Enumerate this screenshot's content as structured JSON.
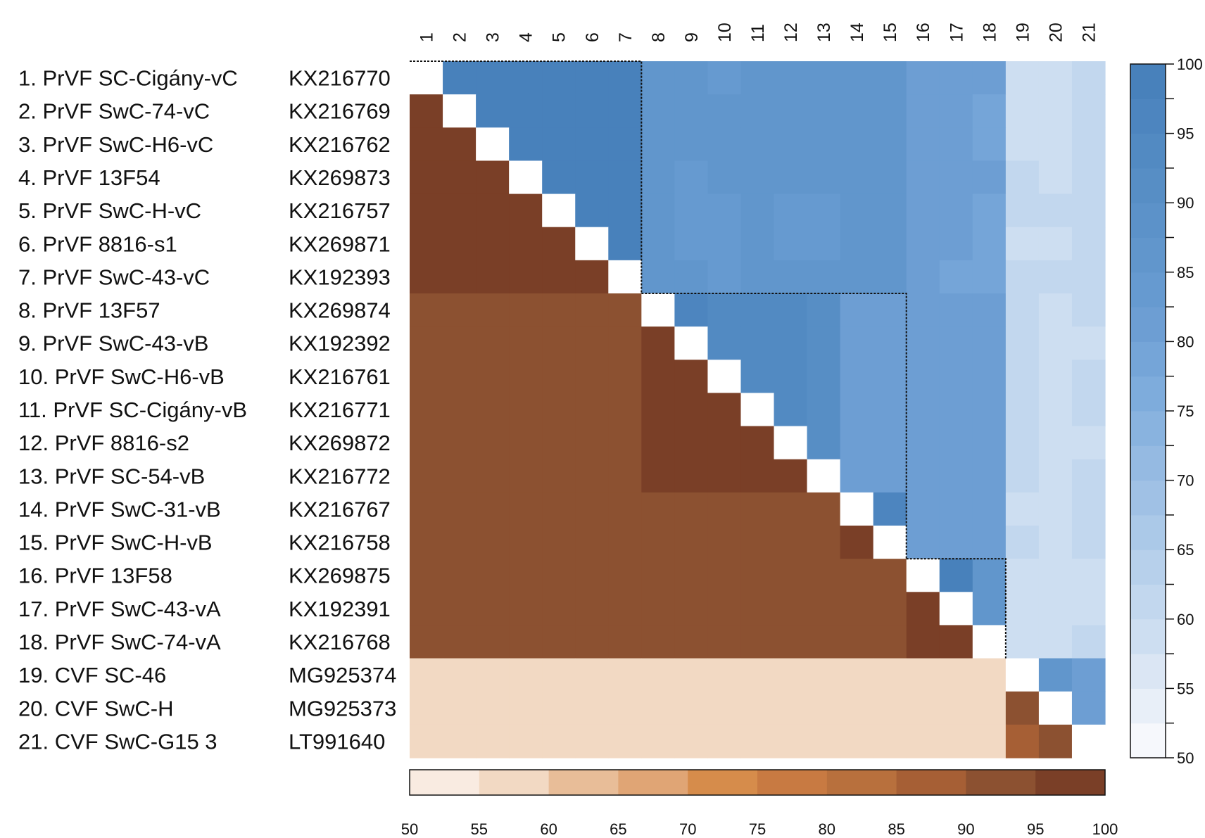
{
  "chart_data": {
    "type": "heatmap",
    "title": "",
    "row_labels": [
      "1. PrVF SC-Cigány-vC",
      "2. PrVF SwC-74-vC",
      "3. PrVF SwC-H6-vC",
      "4. PrVF 13F54",
      "5. PrVF SwC-H-vC",
      "6. PrVF 8816-s1",
      "7. PrVF SwC-43-vC",
      "8. PrVF 13F57",
      "9. PrVF SwC-43-vB",
      "10. PrVF SwC-H6-vB",
      "11. PrVF SC-Cigány-vB",
      "12. PrVF 8816-s2",
      "13. PrVF SC-54-vB",
      "14. PrVF SwC-31-vB",
      "15. PrVF SwC-H-vB",
      "16. PrVF 13F58",
      "17. PrVF SwC-43-vA",
      "18. PrVF SwC-74-vA",
      "19. CVF SC-46",
      "20. CVF SwC-H",
      "21. CVF SwC-G15 3"
    ],
    "accessions": [
      "KX216770",
      "KX216769",
      "KX216762",
      "KX269873",
      "KX216757",
      "KX269871",
      "KX192393",
      "KX269874",
      "KX192392",
      "KX216761",
      "KX216771",
      "KX269872",
      "KX216772",
      "KX216767",
      "KX216758",
      "KX269875",
      "KX192391",
      "KX216768",
      "MG925374",
      "MG925373",
      "LT991640"
    ],
    "column_labels": [
      "1",
      "2",
      "3",
      "4",
      "5",
      "6",
      "7",
      "8",
      "9",
      "10",
      "11",
      "12",
      "13",
      "14",
      "15",
      "16",
      "17",
      "18",
      "19",
      "20",
      "21"
    ],
    "upper_triangle_scale": {
      "range": [
        50,
        100
      ],
      "ticks": [
        50,
        55,
        60,
        65,
        70,
        75,
        80,
        85,
        90,
        95,
        100
      ],
      "minor_step": 2.5,
      "colors_low_to_high": [
        "#f6f8fc",
        "#e8eff8",
        "#dbe6f4",
        "#cddef1",
        "#c2d7ee",
        "#b7d0eb",
        "#abc9e8",
        "#a0c1e5",
        "#95bae2",
        "#89b3df",
        "#7eacdc",
        "#75a5d8",
        "#6d9ed3",
        "#669ad0",
        "#6196cc",
        "#5c92c9",
        "#578ec5",
        "#528ac2",
        "#4d85bf",
        "#4881bb"
      ]
    },
    "lower_triangle_scale": {
      "range": [
        50,
        100
      ],
      "ticks": [
        "50",
        "55",
        "60",
        "65",
        "70",
        "75",
        "80",
        "85",
        "90",
        "95",
        "100"
      ],
      "colors_low_to_high": [
        "#f9ebe1",
        "#f2d9c3",
        "#e8bd98",
        "#e0a575",
        "#d68c4b",
        "#c87a42",
        "#b8703d",
        "#a65f35",
        "#8c5131",
        "#7a3f27"
      ]
    },
    "group_boxes": [
      {
        "first": 1,
        "last": 7
      },
      {
        "first": 8,
        "last": 15
      },
      {
        "first": 16,
        "last": 18
      }
    ],
    "upper_values": [
      [
        null,
        98,
        98,
        98,
        98,
        98,
        98,
        85,
        85,
        83,
        85,
        85,
        85,
        85,
        85,
        82,
        82,
        82,
        58,
        58,
        60
      ],
      [
        null,
        null,
        98,
        98,
        98,
        98,
        98,
        85,
        85,
        85,
        85,
        85,
        85,
        85,
        85,
        82,
        82,
        78,
        58,
        58,
        60
      ],
      [
        null,
        null,
        null,
        98,
        98,
        98,
        98,
        85,
        85,
        85,
        85,
        85,
        85,
        85,
        85,
        82,
        82,
        78,
        58,
        58,
        60
      ],
      [
        null,
        null,
        null,
        null,
        98,
        98,
        98,
        85,
        83,
        85,
        85,
        85,
        85,
        85,
        85,
        82,
        82,
        82,
        60,
        58,
        60
      ],
      [
        null,
        null,
        null,
        null,
        null,
        98,
        98,
        85,
        83,
        83,
        85,
        83,
        83,
        85,
        85,
        82,
        82,
        78,
        60,
        60,
        60
      ],
      [
        null,
        null,
        null,
        null,
        null,
        null,
        98,
        85,
        83,
        83,
        85,
        83,
        83,
        85,
        85,
        82,
        82,
        78,
        58,
        58,
        60
      ],
      [
        null,
        null,
        null,
        null,
        null,
        null,
        null,
        85,
        85,
        83,
        85,
        85,
        85,
        85,
        85,
        82,
        78,
        78,
        60,
        60,
        60
      ],
      [
        null,
        null,
        null,
        null,
        null,
        null,
        null,
        null,
        95,
        93,
        93,
        93,
        90,
        80,
        80,
        80,
        80,
        80,
        60,
        58,
        60
      ],
      [
        null,
        null,
        null,
        null,
        null,
        null,
        null,
        null,
        null,
        93,
        93,
        93,
        90,
        80,
        80,
        80,
        80,
        80,
        60,
        58,
        58
      ],
      [
        null,
        null,
        null,
        null,
        null,
        null,
        null,
        null,
        null,
        null,
        93,
        93,
        90,
        80,
        80,
        80,
        80,
        80,
        60,
        58,
        60
      ],
      [
        null,
        null,
        null,
        null,
        null,
        null,
        null,
        null,
        null,
        null,
        null,
        93,
        90,
        80,
        80,
        80,
        80,
        80,
        60,
        58,
        60
      ],
      [
        null,
        null,
        null,
        null,
        null,
        null,
        null,
        null,
        null,
        null,
        null,
        null,
        90,
        80,
        80,
        80,
        80,
        80,
        60,
        58,
        58
      ],
      [
        null,
        null,
        null,
        null,
        null,
        null,
        null,
        null,
        null,
        null,
        null,
        null,
        null,
        80,
        80,
        80,
        80,
        80,
        60,
        58,
        60
      ],
      [
        null,
        null,
        null,
        null,
        null,
        null,
        null,
        null,
        null,
        null,
        null,
        null,
        null,
        null,
        95,
        80,
        80,
        80,
        58,
        58,
        60
      ],
      [
        null,
        null,
        null,
        null,
        null,
        null,
        null,
        null,
        null,
        null,
        null,
        null,
        null,
        null,
        null,
        80,
        80,
        80,
        60,
        58,
        60
      ],
      [
        null,
        null,
        null,
        null,
        null,
        null,
        null,
        null,
        null,
        null,
        null,
        null,
        null,
        null,
        null,
        null,
        98,
        85,
        58,
        58,
        58
      ],
      [
        null,
        null,
        null,
        null,
        null,
        null,
        null,
        null,
        null,
        null,
        null,
        null,
        null,
        null,
        null,
        null,
        null,
        85,
        58,
        58,
        58
      ],
      [
        null,
        null,
        null,
        null,
        null,
        null,
        null,
        null,
        null,
        null,
        null,
        null,
        null,
        null,
        null,
        null,
        null,
        null,
        58,
        58,
        60
      ],
      [
        null,
        null,
        null,
        null,
        null,
        null,
        null,
        null,
        null,
        null,
        null,
        null,
        null,
        null,
        null,
        null,
        null,
        null,
        null,
        85,
        80
      ],
      [
        null,
        null,
        null,
        null,
        null,
        null,
        null,
        null,
        null,
        null,
        null,
        null,
        null,
        null,
        null,
        null,
        null,
        null,
        null,
        null,
        80
      ],
      [
        null,
        null,
        null,
        null,
        null,
        null,
        null,
        null,
        null,
        null,
        null,
        null,
        null,
        null,
        null,
        null,
        null,
        null,
        null,
        null,
        null
      ]
    ],
    "lower_values": {
      "within_group_1": 97.5,
      "within_group_2": 97.5,
      "within_group_2_pair_14_15": 97.5,
      "within_group_3": 97.5,
      "between_prvf_groups": 92.5,
      "cvf_vs_prvf": 57.5,
      "cvf_pair_20_19": 92.5,
      "cvf_pair_21_19": 87.5,
      "cvf_pair_21_20": 92.5
    }
  }
}
